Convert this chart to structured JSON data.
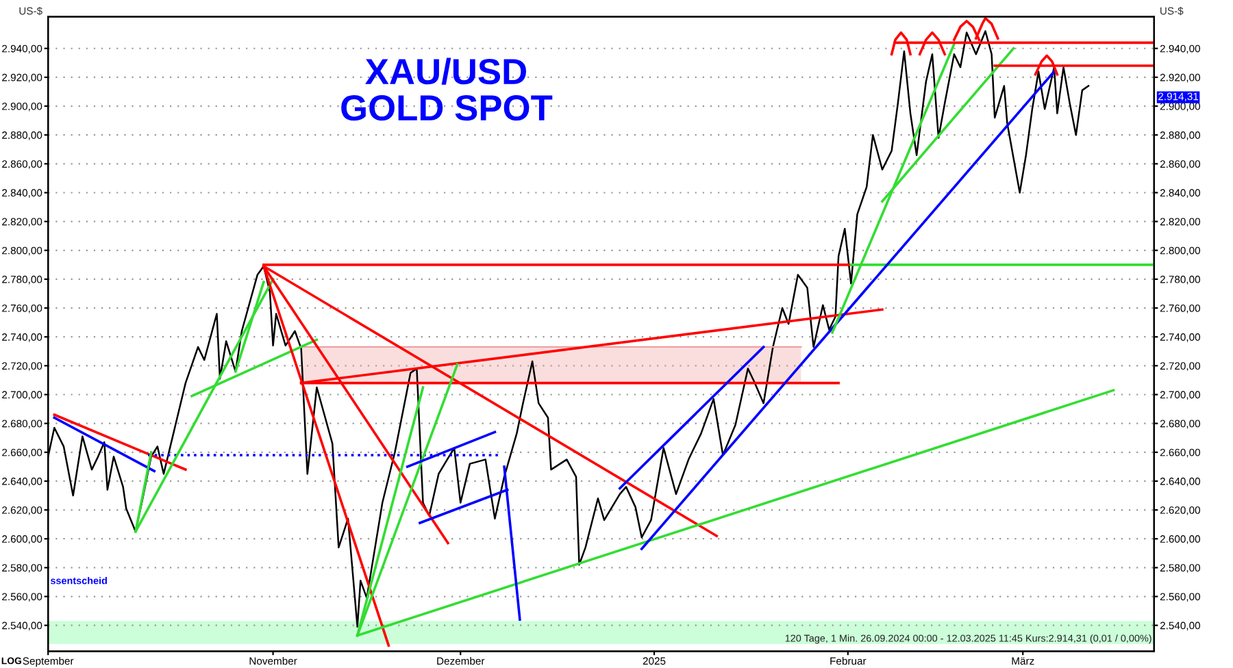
{
  "chart_data": {
    "type": "line",
    "title": "XAU/USD\nGOLD SPOT",
    "ylabel": "US-$",
    "y2label": "US-$",
    "grid": "y",
    "xlim": [
      "2024-09-26",
      "2025-03-22"
    ],
    "xticks": [
      {
        "value": "2024-09-26",
        "label": "September"
      },
      {
        "value": "2024-11-01",
        "label": "November"
      },
      {
        "value": "2024-12-01",
        "label": "Dezember"
      },
      {
        "value": "2025-01-01",
        "label": "2025"
      },
      {
        "value": "2025-02-01",
        "label": "Februar"
      },
      {
        "value": "2025-03-01",
        "label": "März"
      }
    ],
    "ylim": [
      2522,
      2962
    ],
    "yticks": [
      {
        "value": 2540,
        "label": "2.540,00"
      },
      {
        "value": 2560,
        "label": "2.560,00"
      },
      {
        "value": 2580,
        "label": "2.580,00"
      },
      {
        "value": 2600,
        "label": "2.600,00"
      },
      {
        "value": 2620,
        "label": "2.620,00"
      },
      {
        "value": 2640,
        "label": "2.640,00"
      },
      {
        "value": 2660,
        "label": "2.660,00"
      },
      {
        "value": 2680,
        "label": "2.680,00"
      },
      {
        "value": 2700,
        "label": "2.700,00"
      },
      {
        "value": 2720,
        "label": "2.720,00"
      },
      {
        "value": 2740,
        "label": "2.740,00"
      },
      {
        "value": 2760,
        "label": "2.760,00"
      },
      {
        "value": 2780,
        "label": "2.780,00"
      },
      {
        "value": 2800,
        "label": "2.800,00"
      },
      {
        "value": 2820,
        "label": "2.820,00"
      },
      {
        "value": 2840,
        "label": "2.840,00"
      },
      {
        "value": 2860,
        "label": "2.860,00"
      },
      {
        "value": 2880,
        "label": "2.880,00"
      },
      {
        "value": 2900,
        "label": "2.900,00"
      },
      {
        "value": 2920,
        "label": "2.920,00"
      },
      {
        "value": 2940,
        "label": "2.940,00"
      }
    ],
    "y2lim": [
      2522,
      2962
    ],
    "y2ticks": [
      {
        "value": 2540,
        "label": "2.540,00"
      },
      {
        "value": 2560,
        "label": "2.560,00"
      },
      {
        "value": 2580,
        "label": "2.580,00"
      },
      {
        "value": 2600,
        "label": "2.600,00"
      },
      {
        "value": 2620,
        "label": "2.620,00"
      },
      {
        "value": 2640,
        "label": "2.640,00"
      },
      {
        "value": 2660,
        "label": "2.660,00"
      },
      {
        "value": 2680,
        "label": "2.680,00"
      },
      {
        "value": 2700,
        "label": "2.700,00"
      },
      {
        "value": 2720,
        "label": "2.720,00"
      },
      {
        "value": 2740,
        "label": "2.740,00"
      },
      {
        "value": 2760,
        "label": "2.760,00"
      },
      {
        "value": 2780,
        "label": "2.780,00"
      },
      {
        "value": 2800,
        "label": "2.800,00"
      },
      {
        "value": 2820,
        "label": "2.820,00"
      },
      {
        "value": 2840,
        "label": "2.840,00"
      },
      {
        "value": 2860,
        "label": "2.860,00"
      },
      {
        "value": 2880,
        "label": "2.880,00"
      },
      {
        "value": 2900,
        "label": "2.900,00"
      },
      {
        "value": 2920,
        "label": "2.920,00"
      },
      {
        "value": 2940,
        "label": "2.940,00"
      }
    ],
    "bands": [
      {
        "axis": "y",
        "from": 2527,
        "to": 2543,
        "color": "#ccffd9"
      }
    ],
    "series": [
      {
        "type": "line",
        "color": "#f0a0a0",
        "x": [
          "2024-11-05T12:00",
          "2025-01-24T12:00"
        ],
        "values": [
          2733,
          2733
        ],
        "lower": [
          2708,
          2708
        ],
        "upper": [
          2733,
          2733
        ]
      },
      {
        "type": "line",
        "color": "#000000",
        "x": [
          "2024-09-26",
          "2024-09-27",
          "2024-09-28T12:00",
          "2024-09-30",
          "2024-10-01T12:00",
          "2024-10-03",
          "2024-10-04",
          "2024-10-05",
          "2024-10-05T12:00",
          "2024-10-06T12:00",
          "2024-10-08",
          "2024-10-08T12:00",
          "2024-10-10",
          "2024-10-11",
          "2024-10-12T12:00",
          "2024-10-13T12:00",
          "2024-10-14T12:00",
          "2024-10-16T12:00",
          "2024-10-18",
          "2024-10-20",
          "2024-10-21",
          "2024-10-23",
          "2024-10-23T12:00",
          "2024-10-24T12:00",
          "2024-10-26",
          "2024-10-27",
          "2024-10-29T12:00",
          "2024-10-30T12:00",
          "2024-10-31T12:00",
          "2024-11-01",
          "2024-11-01T12:00",
          "2024-11-03",
          "2024-11-04T12:00",
          "2024-11-05T12:00",
          "2024-11-06T12:00",
          "2024-11-08",
          "2024-11-10T12:00",
          "2024-11-11T12:00",
          "2024-11-13",
          "2024-11-14T12:00",
          "2024-11-15",
          "2024-11-16",
          "2024-11-18T12:00",
          "2024-11-20T12:00",
          "2024-11-23",
          "2024-11-24",
          "2024-11-25",
          "2024-11-26",
          "2024-11-27T12:00",
          "2024-11-30",
          "2024-12-01",
          "2024-12-02T12:00",
          "2024-12-05",
          "2024-12-06T12:00",
          "2024-12-08",
          "2024-12-10",
          "2024-12-11",
          "2024-12-12T12:00",
          "2024-12-13T12:00",
          "2024-12-15",
          "2024-12-15T12:00",
          "2024-12-18",
          "2024-12-19T12:00",
          "2024-12-20",
          "2024-12-21",
          "2024-12-23",
          "2024-12-24",
          "2024-12-26T12:00",
          "2024-12-27T12:00",
          "2024-12-29",
          "2024-12-30",
          "2024-12-31T12:00",
          "2025-01-02T12:00",
          "2025-01-04T12:00",
          "2025-01-06T12:00",
          "2025-01-08T12:00",
          "2025-01-10T12:00",
          "2025-01-12",
          "2025-01-14",
          "2025-01-16",
          "2025-01-17",
          "2025-01-18T12:00",
          "2025-01-20",
          "2025-01-21T12:00",
          "2025-01-22T12:00",
          "2025-01-24",
          "2025-01-25T12:00",
          "2025-01-26T12:00",
          "2025-01-28",
          "2025-01-29",
          "2025-01-30",
          "2025-01-30T12:00",
          "2025-01-31T12:00",
          "2025-02-01T12:00",
          "2025-02-02T12:00",
          "2025-02-04",
          "2025-02-05",
          "2025-02-06T12:00",
          "2025-02-08",
          "2025-02-09",
          "2025-02-10",
          "2025-02-11",
          "2025-02-12",
          "2025-02-13T12:00",
          "2025-02-14T12:00",
          "2025-02-15T12:00",
          "2025-02-16T12:00",
          "2025-02-18",
          "2025-02-19",
          "2025-02-20",
          "2025-02-21T12:00",
          "2025-02-23",
          "2025-02-24",
          "2025-02-24T12:00",
          "2025-02-26",
          "2025-02-26T12:00",
          "2025-02-28T12:00",
          "2025-03-01T12:00",
          "2025-03-02T12:00",
          "2025-03-03T12:00",
          "2025-03-04T12:00",
          "2025-03-06",
          "2025-03-06T12:00",
          "2025-03-07T12:00",
          "2025-03-08T12:00",
          "2025-03-09T12:00",
          "2025-03-10T12:00",
          "2025-03-11T12:00"
        ],
        "values": [
          2657,
          2677,
          2664,
          2630,
          2671,
          2648,
          2657,
          2667,
          2634,
          2657,
          2636,
          2621,
          2605,
          2625,
          2657,
          2664,
          2645,
          2681,
          2708,
          2733,
          2724,
          2756,
          2711,
          2737,
          2716,
          2744,
          2783,
          2789,
          2771,
          2734,
          2756,
          2734,
          2744,
          2732,
          2645,
          2705,
          2666,
          2594,
          2614,
          2539,
          2571,
          2559,
          2625,
          2660,
          2715,
          2718,
          2625,
          2616,
          2645,
          2663,
          2625,
          2652,
          2655,
          2614,
          2643,
          2673,
          2694,
          2723,
          2694,
          2684,
          2648,
          2655,
          2643,
          2582,
          2594,
          2628,
          2613,
          2631,
          2636,
          2622,
          2601,
          2613,
          2663,
          2631,
          2655,
          2673,
          2697,
          2658,
          2679,
          2718,
          2709,
          2694,
          2733,
          2760,
          2749,
          2783,
          2774,
          2733,
          2762,
          2745,
          2754,
          2796,
          2815,
          2777,
          2825,
          2844,
          2880,
          2856,
          2869,
          2902,
          2938,
          2895,
          2866,
          2917,
          2936,
          2878,
          2902,
          2936,
          2927,
          2951,
          2936,
          2952,
          2936,
          2892,
          2914,
          2888,
          2840,
          2866,
          2898,
          2924,
          2898,
          2927,
          2895,
          2927,
          2902,
          2880,
          2911,
          2914
        ]
      },
      {
        "type": "line",
        "color": "#ff0000",
        "x": [
          "2024-09-27",
          "2024-10-18"
        ],
        "values": [
          2686,
          2648
        ]
      },
      {
        "type": "line",
        "color": "#0000ff",
        "x": [
          "2024-09-27",
          "2024-10-13"
        ],
        "values": [
          2684,
          2647
        ]
      },
      {
        "type": "line",
        "color": "#0000ff",
        "line_style": "dotted",
        "x": [
          "2024-10-12",
          "2024-12-07"
        ],
        "values": [
          2658,
          2658
        ]
      },
      {
        "type": "line",
        "color": "#33dd33",
        "x": [
          "2024-10-10",
          "2024-10-12T12:00"
        ],
        "values": [
          2605,
          2660
        ]
      },
      {
        "type": "line",
        "color": "#33dd33",
        "x": [
          "2024-10-10",
          "2024-11-01"
        ],
        "values": [
          2605,
          2780
        ]
      },
      {
        "type": "line",
        "color": "#33dd33",
        "x": [
          "2024-10-19",
          "2024-11-08"
        ],
        "values": [
          2699,
          2738
        ]
      },
      {
        "type": "line",
        "color": "#33dd33",
        "x": [
          "2024-10-26",
          "2024-10-30T12:00"
        ],
        "values": [
          2716,
          2778
        ]
      },
      {
        "type": "line",
        "color": "#ff0000",
        "x": [
          "2024-10-30T12:00",
          "2025-02-01T12:00"
        ],
        "values": [
          2790,
          2790
        ]
      },
      {
        "type": "line",
        "color": "#33dd33",
        "x": [
          "2025-02-01T12:00",
          "2025-03-22"
        ],
        "values": [
          2790,
          2790
        ]
      },
      {
        "type": "line",
        "color": "#ff0000",
        "x": [
          "2024-10-30T12:00",
          "2025-01-11"
        ],
        "values": [
          2789,
          2602
        ]
      },
      {
        "type": "line",
        "color": "#ff0000",
        "x": [
          "2024-10-30T12:00",
          "2024-11-29"
        ],
        "values": [
          2789,
          2597
        ]
      },
      {
        "type": "line",
        "color": "#ff0000",
        "x": [
          "2024-10-30T12:00",
          "2024-11-19T12:00"
        ],
        "values": [
          2789,
          2526
        ]
      },
      {
        "type": "line",
        "color": "#ff0000",
        "x": [
          "2024-11-05T12:00",
          "2025-01-30T12:00"
        ],
        "values": [
          2708,
          2708
        ]
      },
      {
        "type": "line",
        "color": "#ff0000",
        "x": [
          "2024-11-05T12:00",
          "2025-02-06T12:00"
        ],
        "values": [
          2708,
          2759
        ]
      },
      {
        "type": "line",
        "color": "#33dd33",
        "x": [
          "2024-11-14T12:00",
          "2025-03-15T12:00"
        ],
        "values": [
          2533,
          2703
        ]
      },
      {
        "type": "line",
        "color": "#33dd33",
        "x": [
          "2024-11-14T12:00",
          "2024-11-25"
        ],
        "values": [
          2533,
          2705
        ]
      },
      {
        "type": "line",
        "color": "#33dd33",
        "x": [
          "2024-11-14T12:00",
          "2024-11-30T12:00"
        ],
        "values": [
          2533,
          2721
        ]
      },
      {
        "type": "line",
        "color": "#0000ff",
        "x": [
          "2024-11-22T12:00",
          "2024-12-06T12:00"
        ],
        "values": [
          2650,
          2674
        ]
      },
      {
        "type": "line",
        "color": "#0000ff",
        "x": [
          "2024-11-24T12:00",
          "2024-12-08T12:00"
        ],
        "values": [
          2611,
          2634
        ]
      },
      {
        "type": "line",
        "color": "#0000ff",
        "x": [
          "2024-12-08",
          "2024-12-10T12:00"
        ],
        "values": [
          2650,
          2544
        ]
      },
      {
        "type": "line",
        "color": "#0000ff",
        "x": [
          "2024-12-26T12:00",
          "2025-01-18T12:00"
        ],
        "values": [
          2635,
          2733
        ]
      },
      {
        "type": "line",
        "color": "#0000ff",
        "x": [
          "2024-12-30",
          "2025-03-06"
        ],
        "values": [
          2593,
          2924
        ]
      },
      {
        "type": "line",
        "color": "#33dd33",
        "x": [
          "2025-01-29T12:00",
          "2025-02-18"
        ],
        "values": [
          2743,
          2943
        ]
      },
      {
        "type": "line",
        "color": "#33dd33",
        "x": [
          "2025-02-06T12:00",
          "2025-02-27T12:00"
        ],
        "values": [
          2834,
          2940
        ]
      },
      {
        "type": "line",
        "color": "#ff0000",
        "x": [
          "2025-02-08T12:00",
          "2025-03-22"
        ],
        "values": [
          2944,
          2944
        ]
      },
      {
        "type": "line",
        "color": "#ff0000",
        "x": [
          "2025-02-24T12:00",
          "2025-03-22"
        ],
        "values": [
          2928,
          2928
        ]
      },
      {
        "type": "line",
        "color": "#ff0000",
        "x": [
          "2025-02-08",
          "2025-02-08T14:00",
          "2025-02-09T12:00",
          "2025-02-10T10:00",
          "2025-02-11"
        ],
        "values": [
          2936,
          2946,
          2951,
          2946,
          2936
        ]
      },
      {
        "type": "line",
        "color": "#ff0000",
        "x": [
          "2025-02-12T12:00",
          "2025-02-13T12:00",
          "2025-02-14T12:00",
          "2025-02-15T12:00",
          "2025-02-16T12:00"
        ],
        "values": [
          2936,
          2946,
          2951,
          2946,
          2936
        ]
      },
      {
        "type": "line",
        "color": "#ff0000",
        "x": [
          "2025-02-18",
          "2025-02-19",
          "2025-02-20",
          "2025-02-21",
          "2025-02-22"
        ],
        "values": [
          2946,
          2955,
          2959,
          2955,
          2946
        ]
      },
      {
        "type": "line",
        "color": "#ff0000",
        "x": [
          "2025-02-21T12:00",
          "2025-02-22T12:00",
          "2025-02-23",
          "2025-02-24",
          "2025-02-25"
        ],
        "values": [
          2947,
          2957,
          2961,
          2957,
          2947
        ]
      },
      {
        "type": "line",
        "color": "#ff0000",
        "x": [
          "2025-03-03",
          "2025-03-04",
          "2025-03-04T20:00",
          "2025-03-05T16:00",
          "2025-03-06T12:00"
        ],
        "values": [
          2922,
          2931,
          2935,
          2931,
          2922
        ]
      }
    ],
    "annotations": [
      "120 Tage, 1 Min. 26.09.2024 00:00 - 12.03.2025 11:45 Kurs:2.914,31 (0,01 / 0,00%)",
      "LOG",
      "ssentscheid",
      "2.914,31"
    ]
  }
}
